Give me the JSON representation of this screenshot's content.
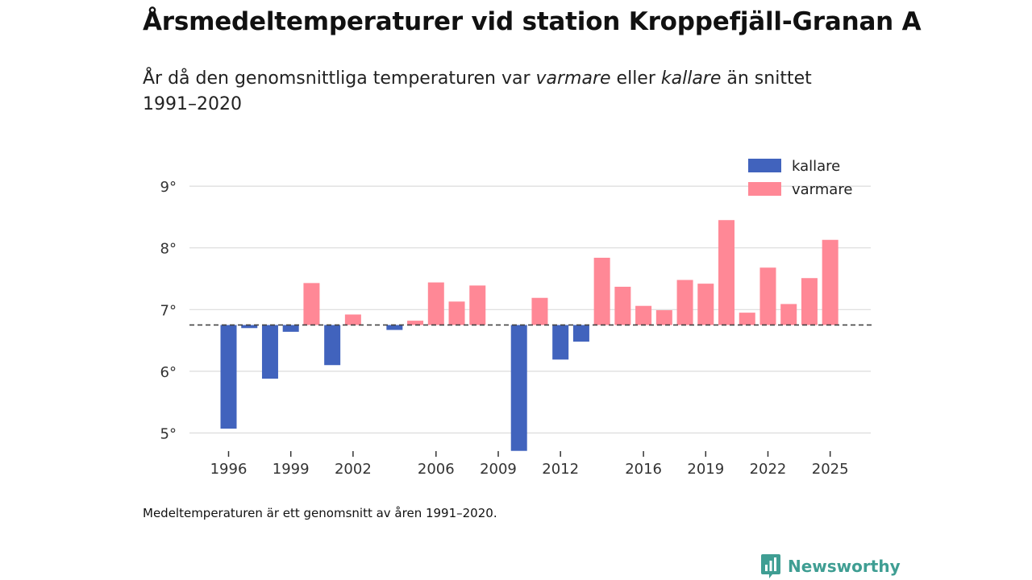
{
  "title": "Årsmedeltemperaturer vid station Kroppefjäll-Granan A",
  "subtitle": {
    "part1": "År då den genomsnittliga temperaturen var ",
    "em1": "varmare",
    "part2": " eller ",
    "em2": "kallare",
    "part3": " än snittet 1991–2020"
  },
  "footnote": "Medeltemperaturen är ett genomsnitt av åren 1991–2020.",
  "brand": "Newsworthy",
  "colors": {
    "kallare": "#4163bd",
    "varmare": "#ff8896",
    "grid": "#dcdcdc",
    "brand": "#3f9e93"
  },
  "chart_data": {
    "type": "bar",
    "title": "Årsmedeltemperaturer vid station Kroppefjäll-Granan A",
    "baseline": 6.75,
    "baseline_label": "snittet 1991–2020",
    "ylim": [
      4.7,
      9.2
    ],
    "yticks": [
      5,
      6,
      7,
      8,
      9
    ],
    "ytick_suffix": "°",
    "xticks": [
      1996,
      1999,
      2002,
      2006,
      2009,
      2012,
      2016,
      2019,
      2022,
      2025
    ],
    "legend": [
      {
        "key": "kallare",
        "label": "kallare"
      },
      {
        "key": "varmare",
        "label": "varmare"
      }
    ],
    "legend_position": "top-right",
    "years": [
      1996,
      1997,
      1998,
      1999,
      2000,
      2001,
      2002,
      2003,
      2004,
      2005,
      2006,
      2007,
      2008,
      2009,
      2010,
      2011,
      2012,
      2013,
      2014,
      2015,
      2016,
      2017,
      2018,
      2019,
      2020,
      2021,
      2022,
      2023,
      2024,
      2025
    ],
    "values": [
      5.07,
      6.7,
      5.88,
      6.64,
      7.43,
      6.1,
      6.92,
      null,
      6.67,
      6.82,
      7.44,
      7.13,
      7.39,
      null,
      4.71,
      7.19,
      6.19,
      6.48,
      7.84,
      7.37,
      7.06,
      6.99,
      7.48,
      7.42,
      8.45,
      6.95,
      7.68,
      7.09,
      7.51,
      8.13
    ]
  }
}
